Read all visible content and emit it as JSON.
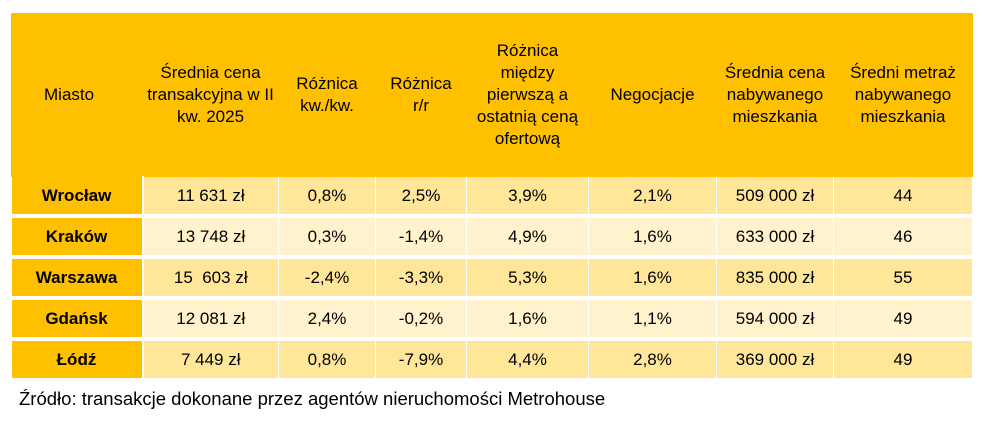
{
  "headers": [
    "Miasto",
    "Średnia cena transakcyjna w II kw. 2025",
    "Różnica kw./kw.",
    "Różnica r/r",
    "Różnica między pierwszą a ostatnią ceną ofertową",
    "Negocjacje",
    "Średnia cena nabywanego mieszkania",
    "Średni metraż nabywanego mieszkania"
  ],
  "rows": [
    [
      "Wrocław",
      "11 631 zł",
      "0,8%",
      "2,5%",
      "3,9%",
      "2,1%",
      "509 000 zł",
      "44"
    ],
    [
      "Kraków",
      "13 748 zł",
      "0,3%",
      "-1,4%",
      "4,9%",
      "1,6%",
      "633 000 zł",
      "46"
    ],
    [
      "Warszawa",
      "15  603 zł",
      "-2,4%",
      "-3,3%",
      "5,3%",
      "1,6%",
      "835 000 zł",
      "55"
    ],
    [
      "Gdańsk",
      "12 081 zł",
      "2,4%",
      "-0,2%",
      "1,6%",
      "1,1%",
      "594 000 zł",
      "49"
    ],
    [
      "Łódź",
      "7 449 zł",
      "0,8%",
      "-7,9%",
      "4,4%",
      "2,8%",
      "369 000 zł",
      "49"
    ]
  ],
  "source": "Źródło: transakcje dokonane przez agentów nieruchomości Metrohouse",
  "colors": {
    "header": "#FFC000",
    "row_dark": "#FFE699",
    "row_light": "#FFF2CC"
  }
}
